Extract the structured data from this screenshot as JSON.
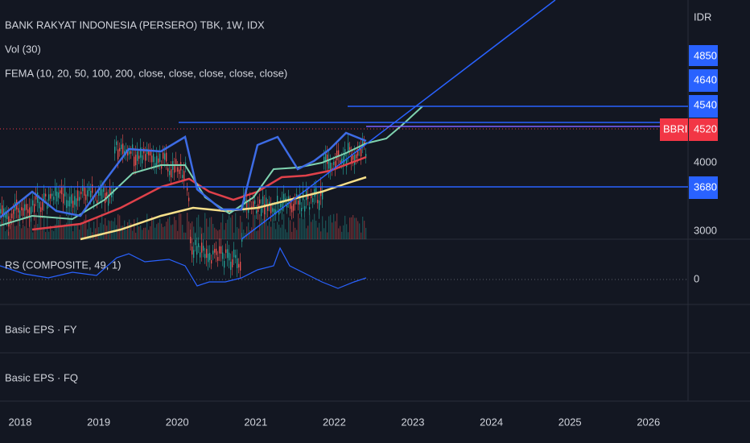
{
  "header": {
    "title": "BANK RAKYAT INDONESIA (PERSERO) TBK, 1W, IDX",
    "volume": "Vol (30)",
    "fema": "FEMA (10, 20, 50, 100, 200, close, close, close, close, close)"
  },
  "panes": {
    "rs": "RS (COMPOSITE, 49, 1)",
    "eps_fy": "Basic EPS · FY",
    "eps_fq": "Basic EPS · FQ"
  },
  "price_axis": {
    "currency": "IDR",
    "labels": [
      "4850",
      "4640",
      "4540",
      "4000",
      "3680",
      "3000"
    ],
    "symbol": "BBRI",
    "last_price": "4520",
    "rs_zero": "0"
  },
  "time_axis": [
    "2018",
    "2019",
    "2020",
    "2021",
    "2022",
    "2023",
    "2024",
    "2025",
    "2026"
  ]
}
